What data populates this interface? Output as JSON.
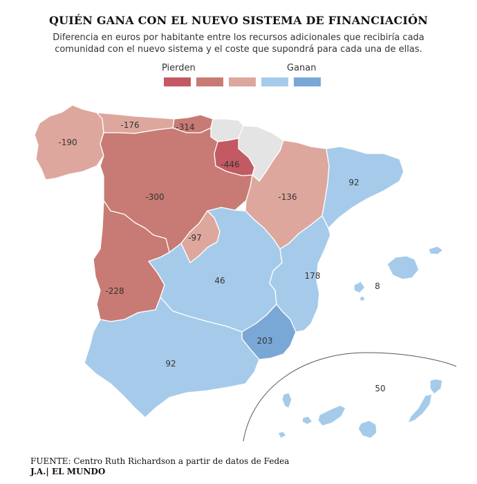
{
  "header": {
    "title": "QUIÉN GANA CON EL NUEVO SISTEMA DE FINANCIACIÓN",
    "subtitle": "Diferencia en euros por habitante entre los recursos adicionales que recibiría cada comunidad con el nuevo sistema y el coste que supondrá para cada una de ellas."
  },
  "legend": {
    "lose_label": "Pierden",
    "gain_label": "Ganan",
    "colors": [
      "#c35a63",
      "#c87a74",
      "#dda79d",
      "#a6cbea",
      "#7aa8d6"
    ]
  },
  "regions": [
    {
      "id": "galicia",
      "value": "-190",
      "color": "#dda79d"
    },
    {
      "id": "asturias",
      "value": "-176",
      "color": "#dda79d"
    },
    {
      "id": "cantabria",
      "value": "-314",
      "color": "#c87a74"
    },
    {
      "id": "pais-vasco",
      "value": "",
      "color": "#e4e4e4"
    },
    {
      "id": "navarra",
      "value": "",
      "color": "#e4e4e4"
    },
    {
      "id": "la-rioja",
      "value": "-446",
      "color": "#c35a63"
    },
    {
      "id": "aragon",
      "value": "-136",
      "color": "#dda79d"
    },
    {
      "id": "cataluna",
      "value": "92",
      "color": "#a6cbea"
    },
    {
      "id": "castilla-y-leon",
      "value": "-300",
      "color": "#c87a74"
    },
    {
      "id": "madrid",
      "value": "-97",
      "color": "#dda79d"
    },
    {
      "id": "extremadura",
      "value": "-228",
      "color": "#c87a74"
    },
    {
      "id": "castilla-la-mancha",
      "value": "46",
      "color": "#a6cbea"
    },
    {
      "id": "valencia",
      "value": "178",
      "color": "#a6cbea"
    },
    {
      "id": "baleares",
      "value": "8",
      "color": "#a6cbea"
    },
    {
      "id": "murcia",
      "value": "203",
      "color": "#7aa8d6"
    },
    {
      "id": "andalucia",
      "value": "92",
      "color": "#a6cbea"
    },
    {
      "id": "canarias",
      "value": "50",
      "color": "#a6cbea"
    }
  ],
  "footer": {
    "source": "FUENTE: Centro Ruth Richardson a partir de datos de Fedea",
    "credit": "J.A.| EL MUNDO"
  }
}
